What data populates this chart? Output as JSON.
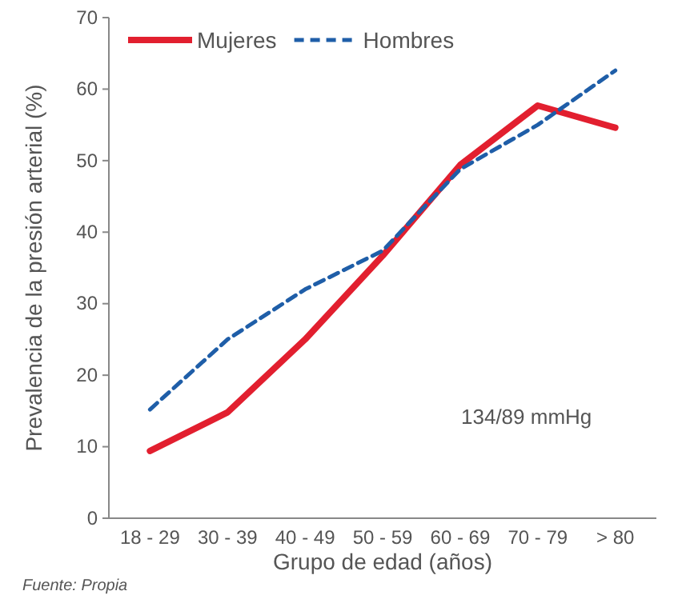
{
  "chart_data": {
    "type": "line",
    "xlabel": "Grupo de edad (años)",
    "ylabel": "Prevalencia de la presión arterial (%)",
    "categories": [
      "18 - 29",
      "30 - 39",
      "40 - 49",
      "50 - 59",
      "60 - 69",
      "70 - 79",
      "> 80"
    ],
    "series": [
      {
        "name": "Mujeres",
        "color": "#e21f2f",
        "line_style": "solid",
        "values": [
          9.4,
          14.8,
          25,
          36.7,
          49.4,
          57.7,
          54.6
        ]
      },
      {
        "name": "Hombres",
        "color": "#1f5ea8",
        "line_style": "dashed",
        "values": [
          15.2,
          25,
          32,
          37.4,
          48.8,
          55,
          62.6
        ]
      }
    ],
    "ylim": [
      0,
      70
    ],
    "yticks": [
      0,
      10,
      20,
      30,
      40,
      50,
      60,
      70
    ],
    "grid": false,
    "legend": "top left",
    "marker": "none",
    "annotations": [
      "134/89 mmHg",
      "Fuente: Propia"
    ]
  }
}
